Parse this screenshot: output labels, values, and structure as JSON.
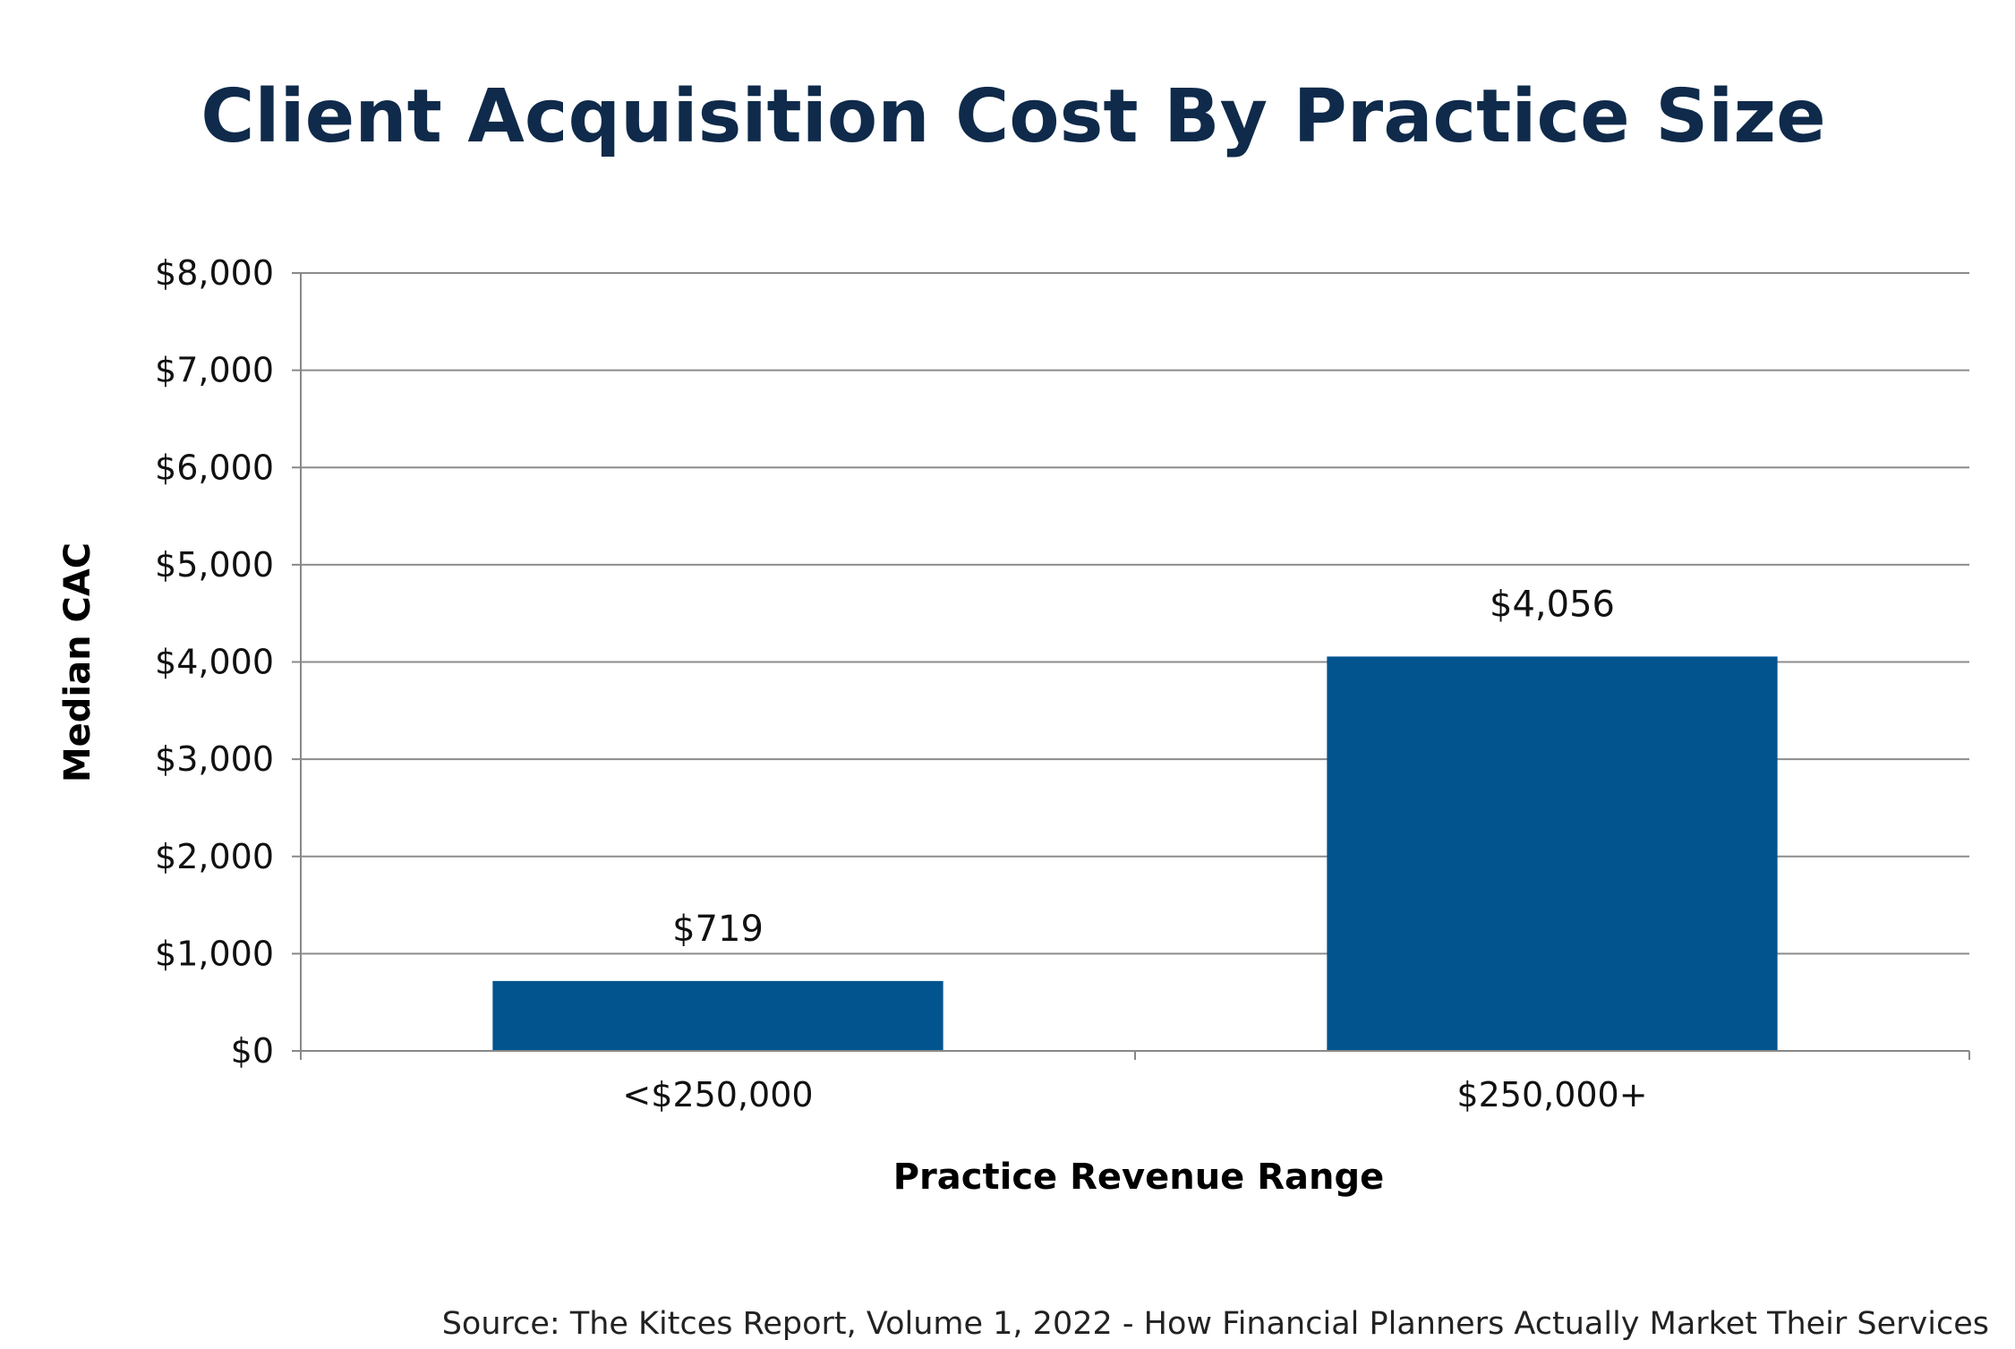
{
  "colors": {
    "title": "#0f2a4a",
    "bar": "#02548f",
    "grid": "#8c8c8c",
    "axis": "#888888",
    "text": "#111111"
  },
  "chart_data": {
    "type": "bar",
    "title": "Client Acquisition Cost By Practice Size",
    "xlabel": "Practice Revenue Range",
    "ylabel": "Median CAC",
    "categories": [
      "<$250,000",
      "$250,000+"
    ],
    "values": [
      719,
      4056
    ],
    "data_labels": [
      "$719",
      "$4,056"
    ],
    "ylim": [
      0,
      8000
    ],
    "yticks": [
      0,
      1000,
      2000,
      3000,
      4000,
      5000,
      6000,
      7000,
      8000
    ],
    "ytick_labels": [
      "$0",
      "$1,000",
      "$2,000",
      "$3,000",
      "$4,000",
      "$5,000",
      "$6,000",
      "$7,000",
      "$8,000"
    ],
    "grid": true,
    "legend": "none"
  },
  "source": "Source: The Kitces Report, Volume 1, 2022 - How Financial Planners Actually Market Their Services"
}
